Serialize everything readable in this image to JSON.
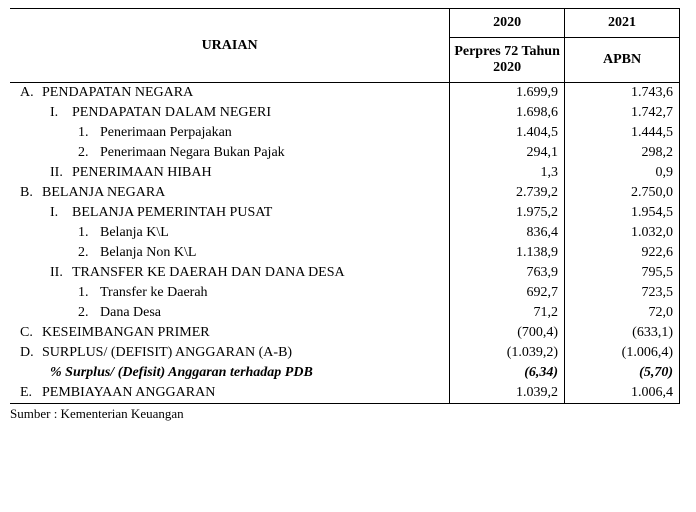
{
  "headers": {
    "uraian": "URAIAN",
    "year1": "2020",
    "year2": "2021",
    "sub1": "Perpres 72 Tahun 2020",
    "sub2": "APBN"
  },
  "rows": [
    {
      "indent": 0,
      "prefix": "A.",
      "label": "PENDAPATAN NEGARA",
      "v1": "1.699,9",
      "v2": "1.743,6",
      "style": ""
    },
    {
      "indent": 1,
      "prefix": "I.",
      "label": "PENDAPATAN DALAM NEGERI",
      "v1": "1.698,6",
      "v2": "1.742,7",
      "style": ""
    },
    {
      "indent": 2,
      "prefix": "1.",
      "label": "Penerimaan Perpajakan",
      "v1": "1.404,5",
      "v2": "1.444,5",
      "style": ""
    },
    {
      "indent": 2,
      "prefix": "2.",
      "label": "Penerimaan Negara Bukan Pajak",
      "v1": "294,1",
      "v2": "298,2",
      "style": ""
    },
    {
      "indent": 1,
      "prefix": "II.",
      "label": "PENERIMAAN HIBAH",
      "v1": "1,3",
      "v2": "0,9",
      "style": ""
    },
    {
      "indent": 0,
      "prefix": "B.",
      "label": "BELANJA NEGARA",
      "v1": "2.739,2",
      "v2": "2.750,0",
      "style": ""
    },
    {
      "indent": 1,
      "prefix": "I.",
      "label": "BELANJA PEMERINTAH PUSAT",
      "v1": "1.975,2",
      "v2": "1.954,5",
      "style": ""
    },
    {
      "indent": 2,
      "prefix": "1.",
      "label": "Belanja K\\L",
      "v1": "836,4",
      "v2": "1.032,0",
      "style": ""
    },
    {
      "indent": 2,
      "prefix": "2.",
      "label": "Belanja Non K\\L",
      "v1": "1.138,9",
      "v2": "922,6",
      "style": ""
    },
    {
      "indent": 1,
      "prefix": "II.",
      "label": "TRANSFER KE DAERAH DAN DANA DESA",
      "v1": "763,9",
      "v2": "795,5",
      "style": ""
    },
    {
      "indent": 2,
      "prefix": "1.",
      "label": "Transfer ke Daerah",
      "v1": "692,7",
      "v2": "723,5",
      "style": ""
    },
    {
      "indent": 2,
      "prefix": "2.",
      "label": "Dana Desa",
      "v1": "71,2",
      "v2": "72,0",
      "style": ""
    },
    {
      "indent": 0,
      "prefix": "C.",
      "label": "KESEIMBANGAN PRIMER",
      "v1": "(700,4)",
      "v2": "(633,1)",
      "style": ""
    },
    {
      "indent": 0,
      "prefix": "D.",
      "label": "SURPLUS/ (DEFISIT) ANGGARAN (A-B)",
      "v1": "(1.039,2)",
      "v2": "(1.006,4)",
      "style": ""
    },
    {
      "indent": 1,
      "prefix": "",
      "label": "% Surplus/ (Defisit) Anggaran terhadap PDB",
      "v1": "(6,34)",
      "v2": "(5,70)",
      "style": "italicbold"
    },
    {
      "indent": 0,
      "prefix": "E.",
      "label": "PEMBIAYAAN ANGGARAN",
      "v1": "1.039,2",
      "v2": "1.006,4",
      "style": ""
    }
  ],
  "source": "Sumber : Kementerian Keuangan"
}
